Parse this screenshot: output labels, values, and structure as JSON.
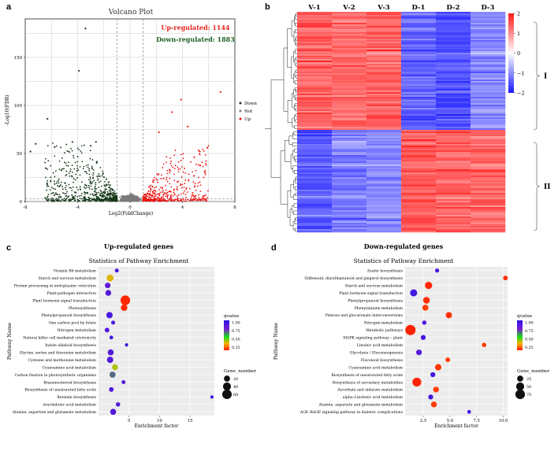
{
  "panels": {
    "a": "a",
    "b": "b",
    "c": "c",
    "d": "d"
  },
  "chart_data": [
    {
      "type": "scatter",
      "id": "volcano",
      "title": "Volcano Plot",
      "xlabel": "Log2(FoldChange)",
      "ylabel": "-Log10(FDR)",
      "xlim": [
        -8,
        8
      ],
      "ylim": [
        0,
        190
      ],
      "xticks": [
        -8,
        -4,
        0,
        4,
        8
      ],
      "xtick_labels": [
        "-8",
        "-4",
        "0",
        "4",
        "8"
      ],
      "yticks": [
        0,
        50,
        100,
        150
      ],
      "ytick_labels": [
        "0",
        "50",
        "100",
        "150"
      ],
      "legend": [
        "Down",
        "Not",
        "Up"
      ],
      "colors": {
        "Down": "#16391a",
        "Not": "#7a7a7a",
        "Up": "#ee1111"
      },
      "annotation_up": "Up-regulated: 1144",
      "annotation_down": "Down-regulated: 1883",
      "annotation_up_color": "#e8231f",
      "annotation_down_color": "#1b5e20",
      "up_count": 1144,
      "down_count": 1883,
      "fc_threshold": 1,
      "fdr_line": 1.3,
      "outliers": [
        {
          "group": "Down",
          "x": -3.4,
          "y": 180
        },
        {
          "group": "Down",
          "x": -3.9,
          "y": 136
        },
        {
          "group": "Down",
          "x": -6.3,
          "y": 86
        },
        {
          "group": "Down",
          "x": -7.2,
          "y": 60
        },
        {
          "group": "Down",
          "x": -7.6,
          "y": 52
        },
        {
          "group": "Down",
          "x": -4.4,
          "y": 62
        },
        {
          "group": "Down",
          "x": -3.0,
          "y": 58
        },
        {
          "group": "Down",
          "x": -2.6,
          "y": 62
        },
        {
          "group": "Up",
          "x": 6.9,
          "y": 114
        },
        {
          "group": "Up",
          "x": 3.9,
          "y": 106
        },
        {
          "group": "Up",
          "x": 3.2,
          "y": 93
        },
        {
          "group": "Up",
          "x": 4.4,
          "y": 78
        },
        {
          "group": "Up",
          "x": 2.2,
          "y": 72
        },
        {
          "group": "Up",
          "x": 5.9,
          "y": 56
        },
        {
          "group": "Up",
          "x": 4.9,
          "y": 46
        }
      ]
    },
    {
      "type": "heatmap",
      "id": "expression-heatmap",
      "columns": [
        "V-1",
        "V-2",
        "V-3",
        "D-1",
        "D-2",
        "D-3"
      ],
      "cluster_labels": [
        "I",
        "II"
      ],
      "cluster_split_fraction": 0.535,
      "scale_ticks": [
        2,
        1,
        0,
        -1,
        -2
      ],
      "scale_tick_labels": [
        "2",
        "1",
        "0",
        "−1",
        "−2"
      ],
      "scale_range": [
        -2,
        2
      ],
      "cluster_means": [
        {
          "cluster": "I",
          "values": [
            1.2,
            1.15,
            1.2,
            -1.2,
            -1.35,
            -0.9
          ]
        },
        {
          "cluster": "II",
          "values": [
            -1.3,
            -1.0,
            -0.9,
            1.3,
            1.25,
            1.2
          ]
        }
      ]
    },
    {
      "type": "scatter",
      "id": "up-enrichment",
      "panel_title": "Up-regulated genes",
      "title": "Statistics of Pathway Enrichment",
      "xlabel": "Enrichment factor",
      "ylabel": "Pathway Name",
      "xlim": [
        0,
        19
      ],
      "xticks": [
        5,
        10,
        15
      ],
      "xtick_labels": [
        "5",
        "10",
        "15"
      ],
      "color_legend_title": "qvalue",
      "color_ticks": [
        "1.00",
        "0.75",
        "0.50",
        "0.25"
      ],
      "size_legend_title": "Gene_number",
      "size_legend": [
        "20",
        "40",
        "60"
      ],
      "size_values": [
        20,
        40,
        60
      ],
      "points": [
        {
          "pathway": "Vitamin B6 metabolism",
          "x": 3.0,
          "genes": 6,
          "q": 0.9
        },
        {
          "pathway": "Starch and sucrose metabolism",
          "x": 1.9,
          "genes": 28,
          "q": 0.25
        },
        {
          "pathway": "Protein processing in endoplasmic reticulum",
          "x": 1.5,
          "genes": 16,
          "q": 0.8
        },
        {
          "pathway": "Plant-pathogen interaction",
          "x": 1.6,
          "genes": 18,
          "q": 0.85
        },
        {
          "pathway": "Plant hormone signal transduction",
          "x": 4.4,
          "genes": 62,
          "q": 0.02
        },
        {
          "pathway": "Photosynthesis",
          "x": 4.2,
          "genes": 24,
          "q": 0.03
        },
        {
          "pathway": "Phenylpropanoid biosynthesis",
          "x": 1.8,
          "genes": 22,
          "q": 0.9
        },
        {
          "pathway": "One carbon pool by folate",
          "x": 2.4,
          "genes": 6,
          "q": 0.9
        },
        {
          "pathway": "Nitrogen metabolism",
          "x": 1.4,
          "genes": 10,
          "q": 0.85
        },
        {
          "pathway": "Natural killer cell mediated cytotoxicity",
          "x": 2.1,
          "genes": 5,
          "q": 0.9
        },
        {
          "pathway": "Indole alkaloid biosynthesis",
          "x": 4.6,
          "genes": 3,
          "q": 0.95
        },
        {
          "pathway": "Glycine, serine and threonine metabolism",
          "x": 2.0,
          "genes": 20,
          "q": 0.85
        },
        {
          "pathway": "Cysteine and methionine metabolism",
          "x": 1.9,
          "genes": 22,
          "q": 0.85
        },
        {
          "pathway": "Cyanoamino acid metabolism",
          "x": 2.7,
          "genes": 18,
          "q": 0.3
        },
        {
          "pathway": "Carbon fixation in photosynthetic organisms",
          "x": 2.3,
          "genes": 20,
          "q": 0.6
        },
        {
          "pathway": "Brassinosteroid biosynthesis",
          "x": 4.1,
          "genes": 6,
          "q": 0.85
        },
        {
          "pathway": "Biosynthesis of unsaturated fatty acids",
          "x": 2.1,
          "genes": 10,
          "q": 0.85
        },
        {
          "pathway": "Betalain biosynthesis",
          "x": 18.6,
          "genes": 3,
          "q": 0.95
        },
        {
          "pathway": "Arachidonic acid metabolism",
          "x": 3.2,
          "genes": 8,
          "q": 0.85
        },
        {
          "pathway": "Alanine, aspartate and glutamate metabolism",
          "x": 2.4,
          "genes": 20,
          "q": 0.85
        }
      ]
    },
    {
      "type": "scatter",
      "id": "down-enrichment",
      "panel_title": "Down-regulated genes",
      "title": "Statistics of Pathway Enrichment",
      "xlabel": "Enrichment factor",
      "ylabel": "Pathway Name",
      "xlim": [
        0.8,
        10.4
      ],
      "xticks": [
        2.5,
        5.0,
        7.5,
        10.0
      ],
      "xtick_labels": [
        "2.5",
        "5.0",
        "7.5",
        "10.0"
      ],
      "color_legend_title": "qvalue",
      "color_ticks": [
        "1.00",
        "0.75",
        "0.50",
        "0.25"
      ],
      "size_legend_title": "Gene_number",
      "size_legend": [
        "25",
        "50",
        "75"
      ],
      "size_values": [
        25,
        50,
        75
      ],
      "points": [
        {
          "pathway": "Zeatin biosynthesis",
          "x": 3.8,
          "genes": 8,
          "q": 0.9
        },
        {
          "pathway": "Stilbenoid, diarylheptanoid and gingerol biosynthesis",
          "x": 10.2,
          "genes": 12,
          "q": 0.03
        },
        {
          "pathway": "Starch and sucrose metabolism",
          "x": 3.0,
          "genes": 38,
          "q": 0.02
        },
        {
          "pathway": "Plant hormone signal transduction",
          "x": 1.6,
          "genes": 36,
          "q": 0.92
        },
        {
          "pathway": "Phenylpropanoid biosynthesis",
          "x": 2.8,
          "genes": 32,
          "q": 0.03
        },
        {
          "pathway": "Phenylalanine metabolism",
          "x": 2.7,
          "genes": 24,
          "q": 0.05
        },
        {
          "pathway": "Pentose and glucuronate interconversions",
          "x": 4.9,
          "genes": 26,
          "q": 0.03
        },
        {
          "pathway": "Nitrogen metabolism",
          "x": 2.6,
          "genes": 10,
          "q": 0.85
        },
        {
          "pathway": "Metabolic pathways",
          "x": 1.3,
          "genes": 88,
          "q": 0.01
        },
        {
          "pathway": "MAPK signaling pathway – plant",
          "x": 2.5,
          "genes": 14,
          "q": 0.9
        },
        {
          "pathway": "Linoleic acid metabolism",
          "x": 8.2,
          "genes": 10,
          "q": 0.05
        },
        {
          "pathway": "Glycolysis / Gluconeogenesis",
          "x": 2.1,
          "genes": 20,
          "q": 0.85
        },
        {
          "pathway": "Flavonoid biosynthesis",
          "x": 4.8,
          "genes": 12,
          "q": 0.05
        },
        {
          "pathway": "Cyanoamino acid metabolism",
          "x": 3.9,
          "genes": 28,
          "q": 0.04
        },
        {
          "pathway": "Biosynthesis of unsaturated fatty acids",
          "x": 3.4,
          "genes": 14,
          "q": 0.9
        },
        {
          "pathway": "Biosynthesis of secondary metabolites",
          "x": 1.9,
          "genes": 62,
          "q": 0.01
        },
        {
          "pathway": "Ascorbate and aldarate metabolism",
          "x": 3.7,
          "genes": 22,
          "q": 0.05
        },
        {
          "pathway": "alpha–Linolenic acid metabolism",
          "x": 3.2,
          "genes": 14,
          "q": 0.9
        },
        {
          "pathway": "Alanine, aspartate and glutamate metabolism",
          "x": 3.5,
          "genes": 22,
          "q": 0.05
        },
        {
          "pathway": "AGE–RAGE signaling pathway in diabetic complications",
          "x": 6.8,
          "genes": 6,
          "q": 0.9
        }
      ]
    }
  ]
}
